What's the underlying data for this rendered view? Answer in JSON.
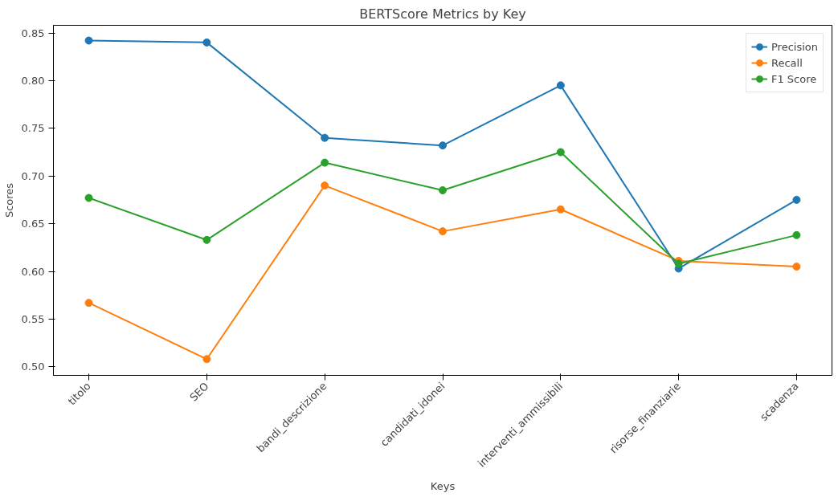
{
  "chart_data": {
    "type": "line",
    "title": "BERTScore Metrics by Key",
    "xlabel": "Keys",
    "ylabel": "Scores",
    "categories": [
      "titolo",
      "SEO",
      "bandi_descrizione",
      "candidati_idonei",
      "interventi_ammissibili",
      "risorse_finanziarie",
      "scadenza"
    ],
    "series": [
      {
        "name": "Precision",
        "color": "#1f77b4",
        "values": [
          0.842,
          0.84,
          0.74,
          0.732,
          0.795,
          0.603,
          0.675
        ]
      },
      {
        "name": "Recall",
        "color": "#ff7f0e",
        "values": [
          0.567,
          0.508,
          0.69,
          0.642,
          0.665,
          0.611,
          0.605
        ]
      },
      {
        "name": "F1 Score",
        "color": "#2ca02c",
        "values": [
          0.677,
          0.633,
          0.714,
          0.685,
          0.725,
          0.608,
          0.638
        ]
      }
    ],
    "ylim": [
      0.491,
      0.858
    ],
    "yticks": [
      {
        "value": 0.5,
        "label": "0.50"
      },
      0.55,
      {
        "value": 0.6,
        "label": "0.60"
      },
      0.65,
      {
        "value": 0.7,
        "label": "0.70"
      },
      0.75,
      {
        "value": 0.8,
        "label": "0.80"
      },
      0.85
    ],
    "grid": false,
    "legend": "top right",
    "marker": "circle",
    "line_style": "solid"
  }
}
